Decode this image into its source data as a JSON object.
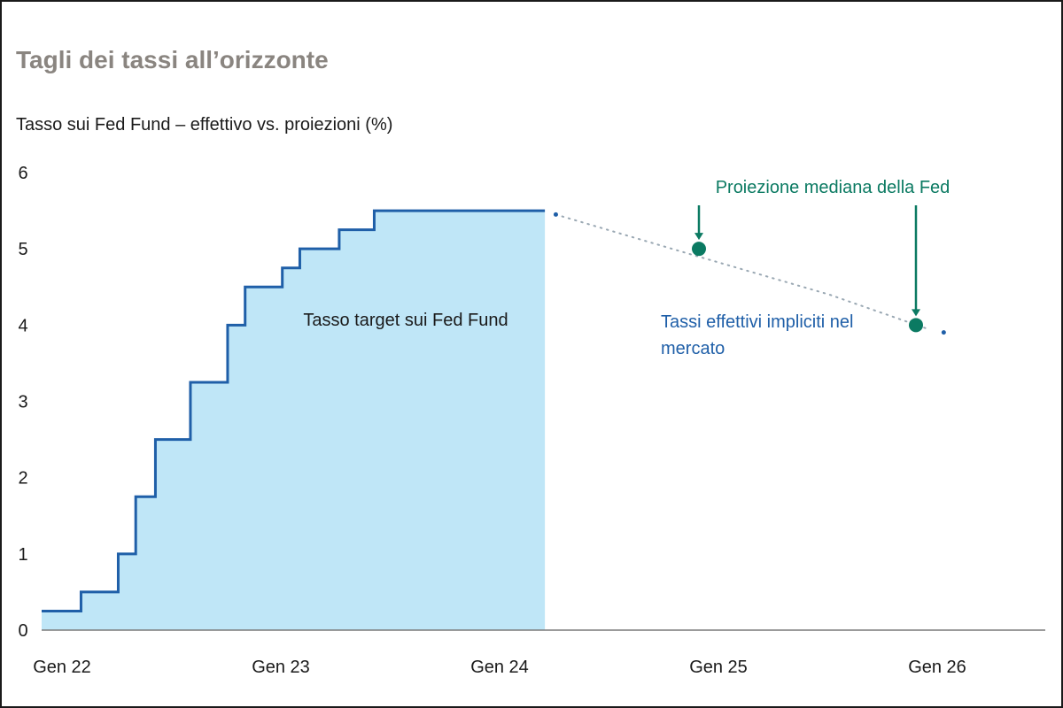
{
  "title": "Tagli dei tassi all’orizzonte",
  "subtitle": "Tasso sui Fed Fund – effettivo vs. proiezioni (%)",
  "colors": {
    "actual_line": "#1f5fa8",
    "actual_fill": "#bfe6f7",
    "projection": "#0b7a62",
    "market": "#1f5fa8",
    "dotted": "#9aa8b3",
    "axis": "#7a7a7a",
    "title": "#8a8580"
  },
  "chart_data": {
    "type": "line",
    "title": "Tagli dei tassi all’orizzonte",
    "subtitle": "Tasso sui Fed Fund – effettivo vs. proiezioni (%)",
    "xlabel": "",
    "ylabel": "",
    "ylim": [
      0,
      6
    ],
    "xlim": [
      2022.0,
      2026.5
    ],
    "y_ticks": [
      "0",
      "1",
      "2",
      "3",
      "4",
      "5",
      "6"
    ],
    "x_ticks": [
      {
        "label": "Gen 22",
        "value": 2022.0
      },
      {
        "label": "Gen 23",
        "value": 2023.0
      },
      {
        "label": "Gen 24",
        "value": 2024.0
      },
      {
        "label": "Gen 25",
        "value": 2025.0
      },
      {
        "label": "Gen 26",
        "value": 2026.0
      }
    ],
    "series": [
      {
        "name": "Tasso target sui Fed Fund",
        "style": "step-area",
        "points": [
          {
            "x": 2022.0,
            "y": 0.25
          },
          {
            "x": 2022.18,
            "y": 0.5
          },
          {
            "x": 2022.35,
            "y": 1.0
          },
          {
            "x": 2022.43,
            "y": 1.75
          },
          {
            "x": 2022.52,
            "y": 2.5
          },
          {
            "x": 2022.68,
            "y": 3.25
          },
          {
            "x": 2022.85,
            "y": 4.0
          },
          {
            "x": 2022.93,
            "y": 4.5
          },
          {
            "x": 2023.1,
            "y": 4.75
          },
          {
            "x": 2023.18,
            "y": 5.0
          },
          {
            "x": 2023.36,
            "y": 5.25
          },
          {
            "x": 2023.52,
            "y": 5.5
          },
          {
            "x": 2024.3,
            "y": 5.5
          }
        ]
      },
      {
        "name": "Tassi effettivi impliciti nel mercato",
        "style": "dotted",
        "points": [
          {
            "x": 2024.35,
            "y": 5.45
          },
          {
            "x": 2025.0,
            "y": 4.9
          },
          {
            "x": 2025.6,
            "y": 4.4
          },
          {
            "x": 2026.05,
            "y": 3.95
          }
        ]
      },
      {
        "name": "Proiezione mediana della Fed",
        "style": "points",
        "points": [
          {
            "x": 2025.0,
            "y": 5.0
          },
          {
            "x": 2026.0,
            "y": 4.0
          }
        ]
      }
    ],
    "annotations": {
      "area_label": "Tasso target sui Fed Fund",
      "projection_label": "Proiezione mediana della Fed",
      "market_label_line1": "Tassi effettivi impliciti nel",
      "market_label_line2": "mercato"
    }
  }
}
